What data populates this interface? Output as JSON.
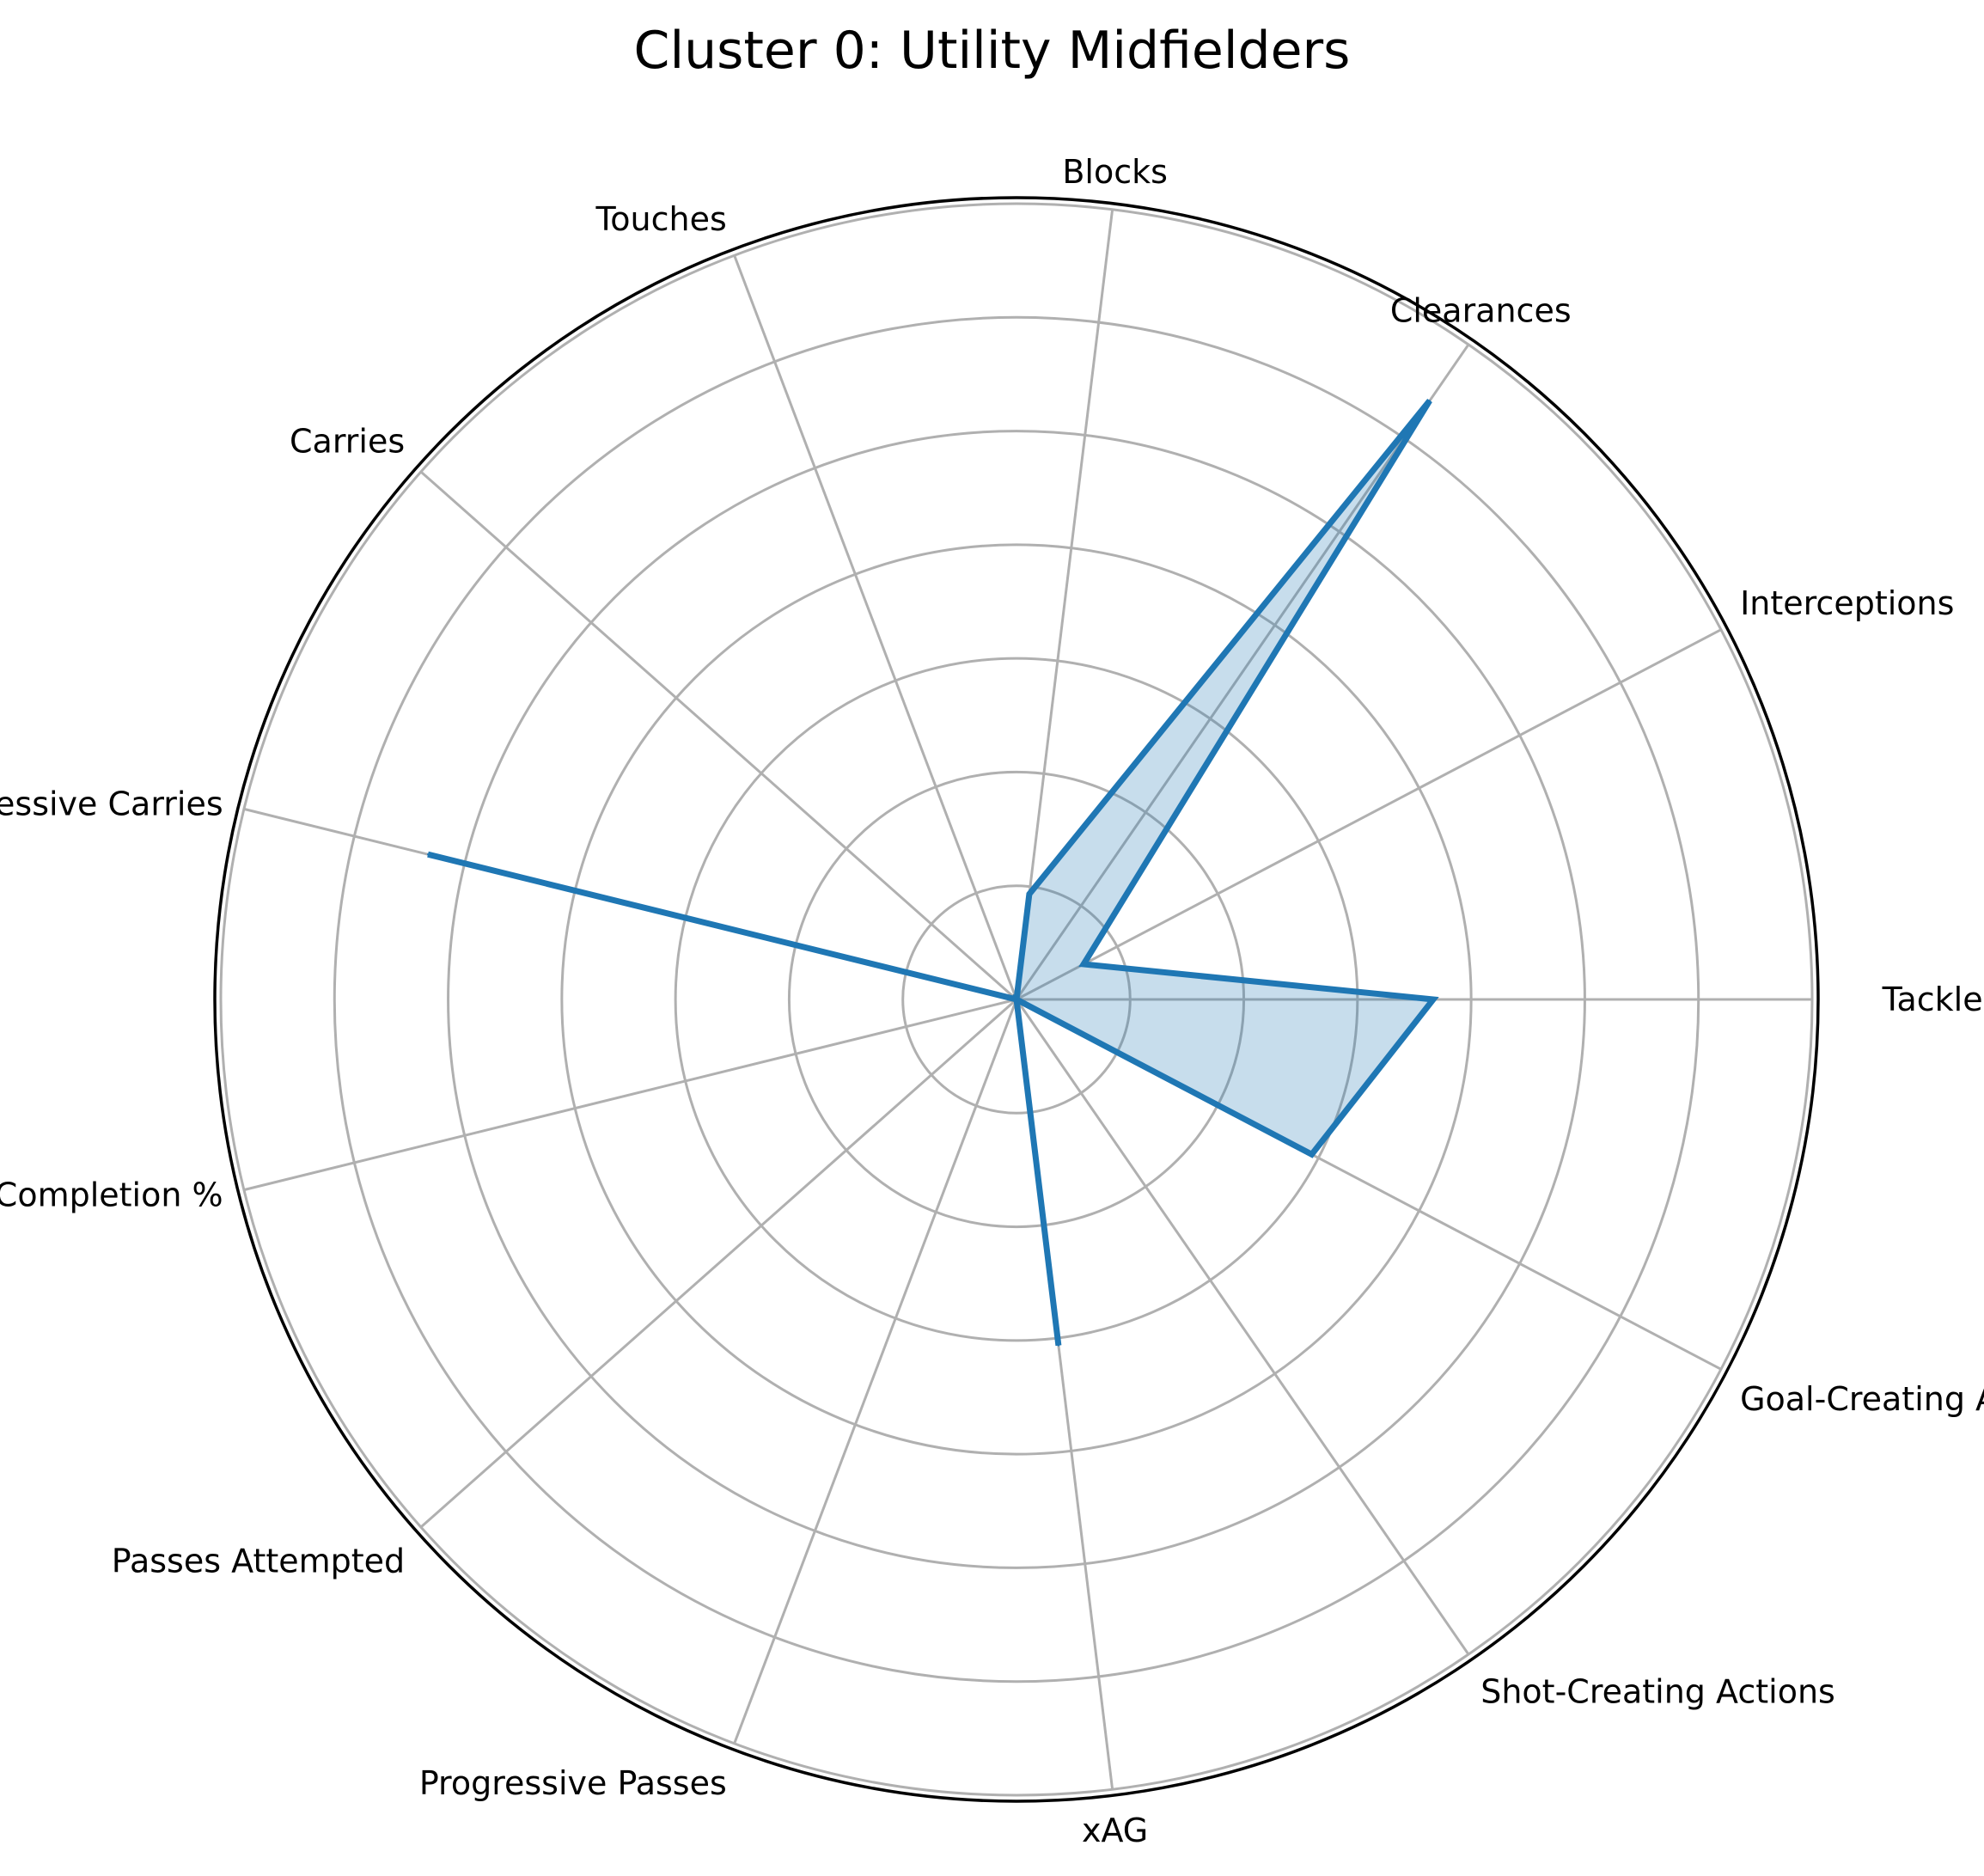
{
  "chart_data": {
    "type": "radar",
    "title": "Cluster 0: Utility Midfielders",
    "categories": [
      "Tackles",
      "Interceptions",
      "Clearances",
      "Blocks",
      "Touches",
      "Carries",
      "Progressive Carries",
      "Pass Completion %",
      "Passes Attempted",
      "Progressive Passes",
      "xAG",
      "Shot-Creating Actions",
      "Goal-Creating Actions"
    ],
    "series": [
      {
        "values": [
          0.55,
          0.1,
          0.96,
          0.14,
          0.0,
          0.0,
          0.8,
          0.0,
          0.0,
          0.0,
          0.46,
          0.0,
          0.44
        ]
      }
    ],
    "ylim": [
      0,
      1.05
    ],
    "rings": [
      0.15,
      0.3,
      0.45,
      0.6,
      0.75,
      0.9,
      1.05
    ],
    "radial_tick_labels": false,
    "grid": true,
    "colors": {
      "series_line": "#1f77b4",
      "series_fill": "#1f77b4",
      "grid": "#b0b0b0",
      "frame": "#000000"
    }
  }
}
